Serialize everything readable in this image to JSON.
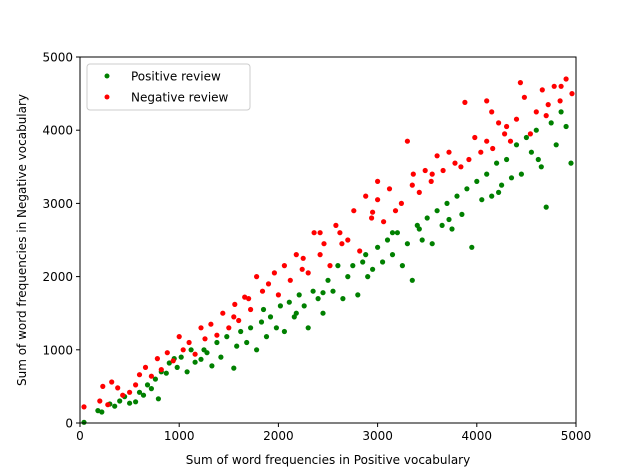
{
  "chart_data": {
    "type": "scatter",
    "xlabel": "Sum of word frequencies in Positive vocabulary",
    "ylabel": "Sum of word frequencies in Negative vocabulary",
    "xlim": [
      0,
      5000
    ],
    "ylim": [
      0,
      5000
    ],
    "xticks": [
      0,
      1000,
      2000,
      3000,
      4000,
      5000
    ],
    "yticks": [
      0,
      1000,
      2000,
      3000,
      4000,
      5000
    ],
    "grid": false,
    "legend_position": "top-left",
    "series": [
      {
        "name": "Positive review",
        "color": "#008000",
        "points": [
          [
            40,
            10
          ],
          [
            180,
            170
          ],
          [
            220,
            150
          ],
          [
            300,
            260
          ],
          [
            350,
            230
          ],
          [
            400,
            300
          ],
          [
            450,
            360
          ],
          [
            500,
            270
          ],
          [
            560,
            290
          ],
          [
            600,
            420
          ],
          [
            640,
            380
          ],
          [
            680,
            520
          ],
          [
            720,
            470
          ],
          [
            760,
            600
          ],
          [
            790,
            330
          ],
          [
            820,
            700
          ],
          [
            870,
            680
          ],
          [
            900,
            820
          ],
          [
            950,
            880
          ],
          [
            980,
            760
          ],
          [
            1020,
            900
          ],
          [
            1080,
            700
          ],
          [
            1120,
            1000
          ],
          [
            1160,
            830
          ],
          [
            1220,
            870
          ],
          [
            1280,
            960
          ],
          [
            1330,
            780
          ],
          [
            1380,
            1100
          ],
          [
            1420,
            900
          ],
          [
            1480,
            1180
          ],
          [
            1550,
            750
          ],
          [
            1580,
            1050
          ],
          [
            1620,
            1250
          ],
          [
            1680,
            1100
          ],
          [
            1720,
            1300
          ],
          [
            1780,
            1000
          ],
          [
            1830,
            1380
          ],
          [
            1880,
            1180
          ],
          [
            1920,
            1450
          ],
          [
            1980,
            1300
          ],
          [
            2020,
            1600
          ],
          [
            2060,
            1250
          ],
          [
            2110,
            1650
          ],
          [
            2160,
            1450
          ],
          [
            2210,
            1750
          ],
          [
            2260,
            1600
          ],
          [
            2300,
            1300
          ],
          [
            2350,
            1800
          ],
          [
            2400,
            1700
          ],
          [
            2450,
            1500
          ],
          [
            2500,
            1950
          ],
          [
            2550,
            1800
          ],
          [
            2600,
            2150
          ],
          [
            2650,
            1700
          ],
          [
            2700,
            2000
          ],
          [
            2750,
            2150
          ],
          [
            2800,
            1750
          ],
          [
            2850,
            2200
          ],
          [
            2900,
            2000
          ],
          [
            2950,
            2100
          ],
          [
            3000,
            2400
          ],
          [
            3050,
            2200
          ],
          [
            3100,
            2500
          ],
          [
            3150,
            2300
          ],
          [
            3200,
            2600
          ],
          [
            3250,
            2150
          ],
          [
            3300,
            2450
          ],
          [
            3350,
            1950
          ],
          [
            3400,
            2700
          ],
          [
            3450,
            2500
          ],
          [
            3500,
            2800
          ],
          [
            3550,
            2450
          ],
          [
            3600,
            2900
          ],
          [
            3650,
            2700
          ],
          [
            3700,
            3000
          ],
          [
            3750,
            2650
          ],
          [
            3800,
            3100
          ],
          [
            3850,
            2850
          ],
          [
            3900,
            3200
          ],
          [
            3950,
            2400
          ],
          [
            4000,
            3300
          ],
          [
            4050,
            3050
          ],
          [
            4100,
            3400
          ],
          [
            4150,
            3100
          ],
          [
            4200,
            3550
          ],
          [
            4250,
            3250
          ],
          [
            4300,
            3600
          ],
          [
            4350,
            3350
          ],
          [
            4400,
            3800
          ],
          [
            4450,
            3400
          ],
          [
            4500,
            3900
          ],
          [
            4550,
            3700
          ],
          [
            4600,
            4000
          ],
          [
            4650,
            3500
          ],
          [
            4700,
            2950
          ],
          [
            4750,
            4100
          ],
          [
            4800,
            3800
          ],
          [
            4850,
            4250
          ],
          [
            4900,
            4050
          ],
          [
            4950,
            3550
          ],
          [
            1250,
            1000
          ],
          [
            2450,
            1780
          ],
          [
            3150,
            2600
          ],
          [
            3720,
            2780
          ],
          [
            4220,
            3150
          ],
          [
            2880,
            2300
          ],
          [
            1850,
            1550
          ],
          [
            4620,
            3600
          ],
          [
            3420,
            2650
          ],
          [
            2180,
            1500
          ]
        ]
      },
      {
        "name": "Negative review",
        "color": "#ff0000",
        "points": [
          [
            40,
            220
          ],
          [
            200,
            300
          ],
          [
            230,
            500
          ],
          [
            280,
            250
          ],
          [
            320,
            560
          ],
          [
            380,
            480
          ],
          [
            430,
            380
          ],
          [
            500,
            420
          ],
          [
            560,
            520
          ],
          [
            600,
            660
          ],
          [
            660,
            760
          ],
          [
            720,
            640
          ],
          [
            780,
            880
          ],
          [
            820,
            730
          ],
          [
            880,
            960
          ],
          [
            940,
            850
          ],
          [
            1000,
            1180
          ],
          [
            1040,
            1000
          ],
          [
            1100,
            1100
          ],
          [
            1160,
            940
          ],
          [
            1220,
            1300
          ],
          [
            1260,
            1150
          ],
          [
            1320,
            1350
          ],
          [
            1380,
            1200
          ],
          [
            1440,
            1500
          ],
          [
            1500,
            1300
          ],
          [
            1560,
            1620
          ],
          [
            1600,
            1400
          ],
          [
            1660,
            1720
          ],
          [
            1720,
            1550
          ],
          [
            1780,
            2000
          ],
          [
            1840,
            1800
          ],
          [
            1900,
            1900
          ],
          [
            1960,
            2050
          ],
          [
            2000,
            1750
          ],
          [
            2060,
            2150
          ],
          [
            2120,
            1950
          ],
          [
            2180,
            2300
          ],
          [
            2240,
            2100
          ],
          [
            2300,
            2050
          ],
          [
            2360,
            2600
          ],
          [
            2420,
            2300
          ],
          [
            2460,
            2450
          ],
          [
            2520,
            2150
          ],
          [
            2580,
            2700
          ],
          [
            2640,
            2450
          ],
          [
            2700,
            2500
          ],
          [
            2760,
            2900
          ],
          [
            2820,
            2350
          ],
          [
            2880,
            3100
          ],
          [
            2940,
            2800
          ],
          [
            3000,
            3050
          ],
          [
            3060,
            2750
          ],
          [
            3120,
            3200
          ],
          [
            3180,
            2900
          ],
          [
            3240,
            3000
          ],
          [
            3300,
            3850
          ],
          [
            3360,
            3400
          ],
          [
            3420,
            3150
          ],
          [
            3480,
            3450
          ],
          [
            3540,
            3300
          ],
          [
            3600,
            3650
          ],
          [
            3660,
            3450
          ],
          [
            3720,
            3700
          ],
          [
            3780,
            3550
          ],
          [
            3840,
            3500
          ],
          [
            3880,
            4380
          ],
          [
            3920,
            3600
          ],
          [
            3980,
            3900
          ],
          [
            4040,
            3700
          ],
          [
            4100,
            3850
          ],
          [
            4160,
            3750
          ],
          [
            4220,
            4100
          ],
          [
            4280,
            3950
          ],
          [
            4340,
            3850
          ],
          [
            4400,
            4150
          ],
          [
            4440,
            4650
          ],
          [
            4480,
            4450
          ],
          [
            4540,
            3950
          ],
          [
            4600,
            4250
          ],
          [
            4660,
            4550
          ],
          [
            4720,
            4350
          ],
          [
            4780,
            4600
          ],
          [
            4840,
            4400
          ],
          [
            4900,
            4700
          ],
          [
            4960,
            4500
          ],
          [
            4100,
            4400
          ],
          [
            4150,
            4250
          ],
          [
            4700,
            4200
          ],
          [
            3000,
            3300
          ],
          [
            2420,
            2600
          ],
          [
            1700,
            1700
          ],
          [
            2950,
            2880
          ],
          [
            3550,
            3400
          ],
          [
            4300,
            4050
          ],
          [
            2250,
            2250
          ],
          [
            3350,
            3250
          ],
          [
            1550,
            1450
          ],
          [
            4850,
            4600
          ],
          [
            2620,
            2600
          ]
        ]
      }
    ]
  }
}
